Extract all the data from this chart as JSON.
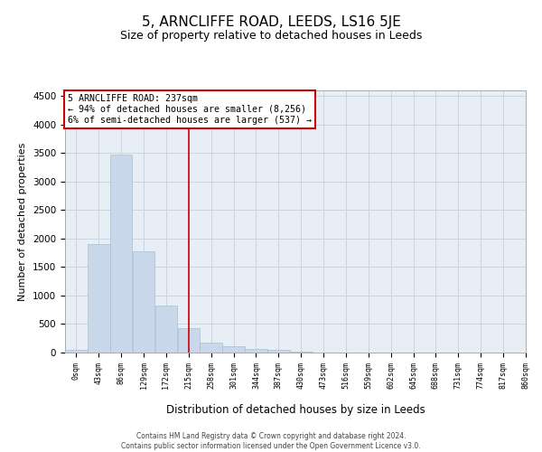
{
  "title_line1": "5, ARNCLIFFE ROAD, LEEDS, LS16 5JE",
  "title_line2": "Size of property relative to detached houses in Leeds",
  "xlabel": "Distribution of detached houses by size in Leeds",
  "ylabel": "Number of detached properties",
  "annotation_title": "5 ARNCLIFFE ROAD: 237sqm",
  "annotation_line1": "← 94% of detached houses are smaller (8,256)",
  "annotation_line2": "6% of semi-detached houses are larger (537) →",
  "property_line_x": 237,
  "footer_line1": "Contains HM Land Registry data © Crown copyright and database right 2024.",
  "footer_line2": "Contains public sector information licensed under the Open Government Licence v3.0.",
  "bar_color": "#c8d8ea",
  "bar_edge_color": "#a8bfd0",
  "annotation_box_color": "#ffffff",
  "annotation_box_edge": "#cc0000",
  "vline_color": "#cc0000",
  "grid_color": "#ccd4e0",
  "background_color": "#e8eef5",
  "bin_edges": [
    0,
    43,
    86,
    129,
    172,
    215,
    258,
    301,
    344,
    387,
    430,
    473,
    516,
    559,
    602,
    645,
    688,
    731,
    774,
    817,
    860
  ],
  "bin_labels": [
    "0sqm",
    "43sqm",
    "86sqm",
    "129sqm",
    "172sqm",
    "215sqm",
    "258sqm",
    "301sqm",
    "344sqm",
    "387sqm",
    "430sqm",
    "473sqm",
    "516sqm",
    "559sqm",
    "602sqm",
    "645sqm",
    "688sqm",
    "731sqm",
    "774sqm",
    "817sqm",
    "860sqm"
  ],
  "bar_heights": [
    50,
    1900,
    3480,
    1780,
    820,
    430,
    175,
    105,
    60,
    40,
    10,
    5,
    0,
    0,
    0,
    0,
    0,
    0,
    0,
    0
  ],
  "ylim": [
    0,
    4600
  ],
  "yticks": [
    0,
    500,
    1000,
    1500,
    2000,
    2500,
    3000,
    3500,
    4000,
    4500
  ]
}
